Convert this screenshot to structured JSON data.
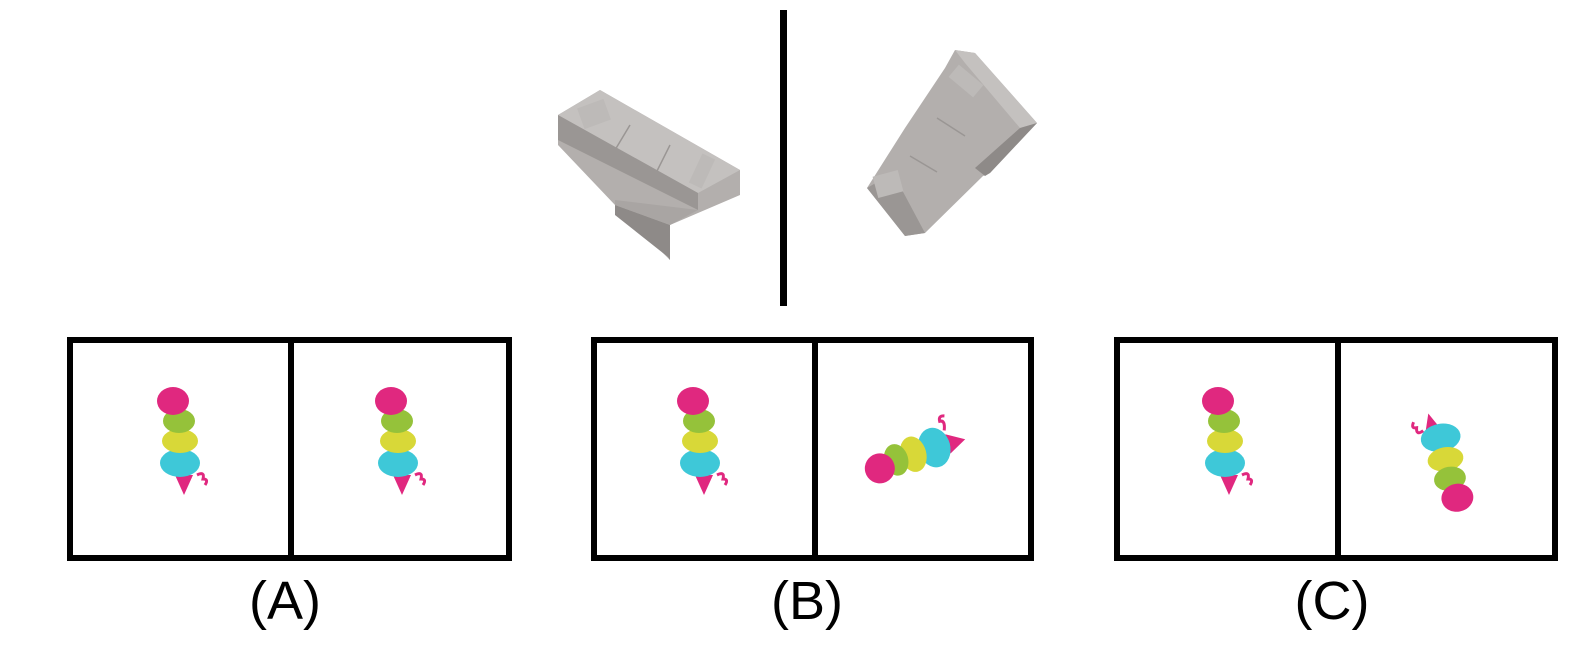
{
  "options": [
    {
      "label": "(A)"
    },
    {
      "label": "(B)"
    },
    {
      "label": "(C)"
    }
  ],
  "colors": {
    "sofa": "#a9a5a3",
    "sofa_dark": "#8e8a88",
    "sofa_light": "#c4c1bf",
    "stack_magenta": "#e0287f",
    "stack_lime": "#95c23a",
    "stack_yellow": "#d8d838",
    "stack_cyan": "#3ec8d8"
  }
}
